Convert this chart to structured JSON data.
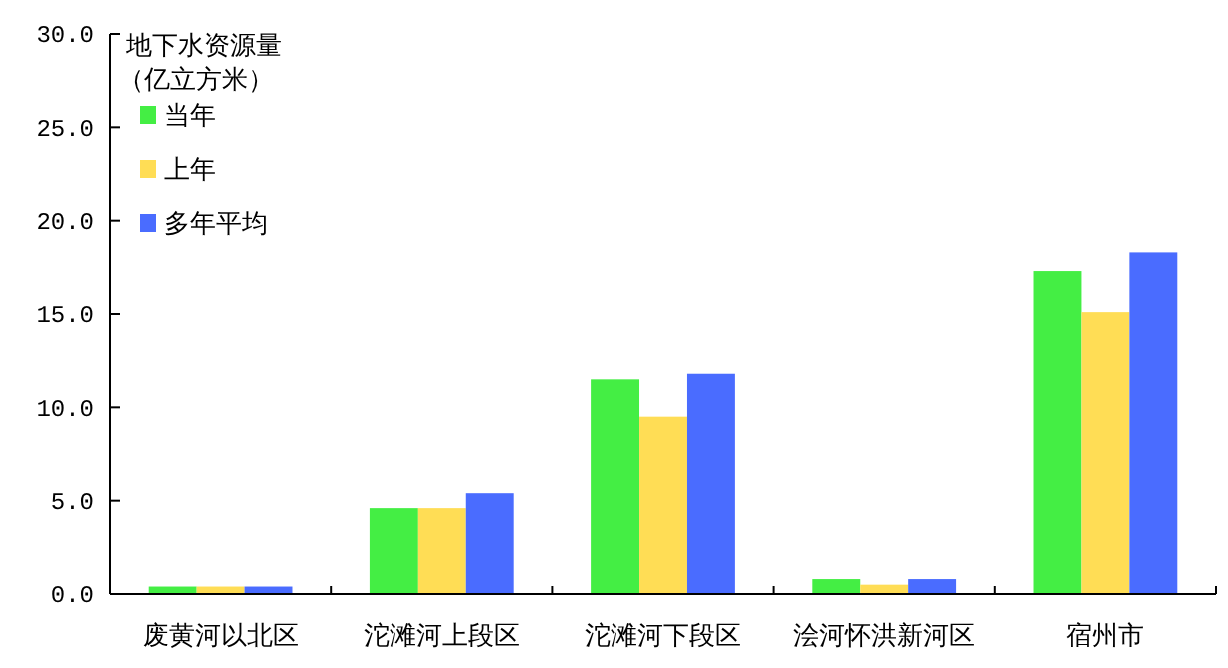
{
  "chart_data": {
    "type": "bar",
    "ylabel": "地下水资源量（亿立方米）",
    "categories": [
      "废黄河以北区",
      "沱滩河上段区",
      "沱滩河下段区",
      "浍河怀洪新河区",
      "宿州市"
    ],
    "series": [
      {
        "name": "当年",
        "color": "#44ee44",
        "values": [
          0.4,
          4.6,
          11.5,
          0.8,
          17.3
        ]
      },
      {
        "name": "上年",
        "color": "#ffdd55",
        "values": [
          0.4,
          4.6,
          9.5,
          0.5,
          15.1
        ]
      },
      {
        "name": "多年平均",
        "color": "#4a6cff",
        "values": [
          0.4,
          5.4,
          11.8,
          0.8,
          18.3
        ]
      }
    ],
    "ylim": [
      0,
      30
    ],
    "yticks": [
      {
        "value": 0,
        "label": "0.0"
      },
      {
        "value": 5,
        "label": "5.0"
      },
      {
        "value": 10,
        "label": "10.0"
      },
      {
        "value": 15,
        "label": "15.0"
      },
      {
        "value": 20,
        "label": "20.0"
      },
      {
        "value": 25,
        "label": "25.0"
      },
      {
        "value": 30,
        "label": "30.0"
      }
    ],
    "legend": "top left",
    "grid": false
  }
}
